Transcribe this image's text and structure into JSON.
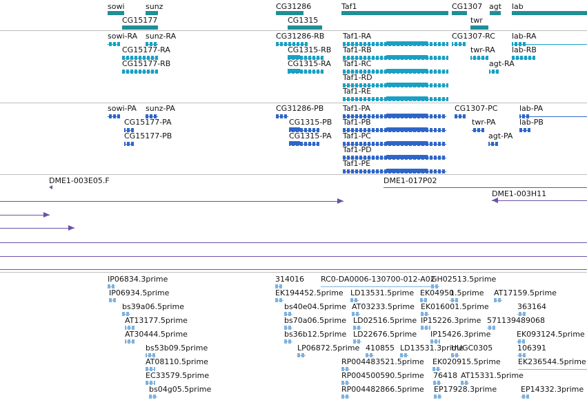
{
  "colors": {
    "gene": "#1f8f96",
    "transcript": "#1aa0c4",
    "protein": "#2e66c8",
    "clone": "#6a50a8",
    "est": "#7fb2de",
    "label": "#111111",
    "divider": "#bdbdbd"
  },
  "tracks": {
    "genes": {
      "labels": [
        "sowi",
        "sunz",
        "CG31286",
        "Taf1",
        "CG1307",
        "agt",
        "lab",
        "CG15177",
        "CG1315",
        "twr"
      ]
    },
    "transcripts": {
      "labels": [
        "sowi-RA",
        "sunz-RA",
        "CG31286-RB",
        "Taf1-RA",
        "CG1307-RC",
        "lab-RA",
        "CG15177-RA",
        "CG1315-RB",
        "Taf1-RB",
        "twr-RA",
        "lab-RB",
        "CG15177-RB",
        "CG1315-RA",
        "Taf1-RC",
        "agt-RA",
        "Taf1-RD",
        "Taf1-RE"
      ]
    },
    "proteins": {
      "labels": [
        "sowi-PA",
        "sunz-PA",
        "CG31286-PB",
        "Taf1-PA",
        "CG1307-PC",
        "lab-PA",
        "CG15177-PA",
        "CG1315-PB",
        "Taf1-PB",
        "twr-PA",
        "lab-PB",
        "CG15177-PB",
        "CG1315-PA",
        "Taf1-PC",
        "agt-PA",
        "Taf1-PD",
        "Taf1-PE"
      ]
    },
    "clones": {
      "labels": [
        "DME1-003E05.F",
        "DME1-017P02",
        "DME1-003H11"
      ]
    },
    "ests": {
      "labels": [
        "IP06834.3prime",
        "314016",
        "RC0-DA0006-130700-012-A02",
        "GH02513.5prime",
        "IP06934.5prime",
        "EK194452.5prime",
        "LD13531.5prime",
        "EK04950",
        "1.5prime",
        "AT17159.5prime",
        "bs39a06.5prime",
        "bs40e04.5prime",
        "AT03233.5prime",
        "EK016001.5prime",
        "363164",
        "AT13177.5prime",
        "bs70a06.5prime",
        "LD02516.5prime",
        "IP15226.3prime",
        "571139489068",
        "AT30444.5prime",
        "bs36b12.5prime",
        "LD22676.5prime",
        "IP15426.3prime",
        "EK093124.5prime",
        "bs53b09.5prime",
        "LP06872.5prime",
        "410855",
        "LD13531.3prime",
        "UUGC0305",
        "106391",
        "AT08110.5prime",
        "RP004483521.5prime",
        "EK020915.5prime",
        "EK236544.5prime",
        "EC33579.5prime",
        "RP004500590.5prime",
        "76418",
        "AT15331.5prime",
        "bs04g05.5prime",
        "RP004482866.5prime",
        "EP17928.3prime",
        "EP14332.3prime"
      ]
    }
  }
}
